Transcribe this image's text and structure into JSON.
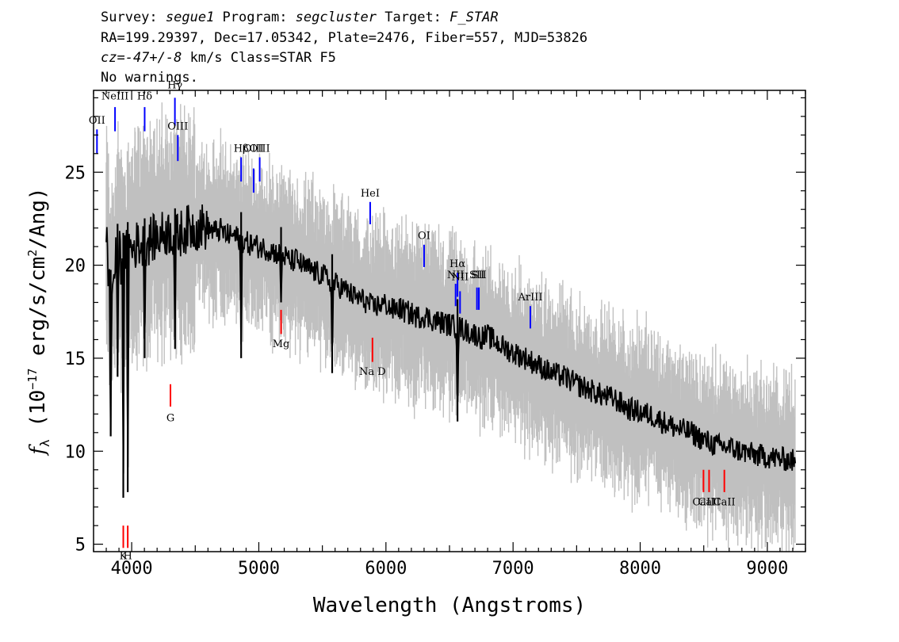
{
  "header": {
    "line1": {
      "survey_label": "Survey: ",
      "survey": "segue1",
      "program_label": " Program: ",
      "program": "segcluster",
      "target_label": " Target: ",
      "target": "F_STAR"
    },
    "line2": "RA=199.29397, Dec=17.05342, Plate=2476, Fiber=557, MJD=53826",
    "line3": {
      "cz": "cz=-47+/-8",
      "rest": " km/s Class=STAR F5"
    },
    "line4": "No warnings."
  },
  "chart_data": {
    "type": "line",
    "xlabel": "Wavelength (Angstroms)",
    "ylabel": "f_λ (10^-17 erg/s/cm^2/Ang)",
    "xlim": [
      3700,
      9300
    ],
    "ylim": [
      4.6,
      29.4
    ],
    "xticks": [
      4000,
      5000,
      6000,
      7000,
      8000,
      9000
    ],
    "yticks": [
      5,
      10,
      15,
      20,
      25
    ],
    "grid": false,
    "colors": {
      "flux": "#000000",
      "noise": "#c0c0c0",
      "emission": "#0000ff",
      "absorption": "#ff0000"
    },
    "series": [
      {
        "values_x": [
          3800,
          3830,
          3860,
          3880,
          3900,
          3920,
          3950,
          3980,
          4000,
          4050,
          4100,
          4150,
          4200,
          4250,
          4300,
          4350,
          4400,
          4450,
          4500,
          4550,
          4600,
          4650,
          4700,
          4750,
          4800,
          4850,
          4900,
          4950,
          5000,
          5050,
          5100,
          5150,
          5200,
          5250,
          5300,
          5350,
          5400,
          5450,
          5500,
          5550,
          5600,
          5650,
          5700,
          5750,
          5800,
          5850,
          5900,
          5950,
          6000,
          6050,
          6100,
          6150,
          6200,
          6250,
          6300,
          6350,
          6400,
          6450,
          6500,
          6550,
          6600,
          6650,
          6700,
          6750,
          6800,
          6900,
          7000,
          7100,
          7200,
          7300,
          7400,
          7500,
          7600,
          7700,
          7800,
          7900,
          8000,
          8100,
          8200,
          8300,
          8400,
          8500,
          8600,
          8700,
          8800,
          8900,
          9000,
          9100,
          9200,
          9220
        ],
        "values_y": [
          22.0,
          18.0,
          19.5,
          20.5,
          21.0,
          20.0,
          20.5,
          21.0,
          20.8,
          21.2,
          21.0,
          21.4,
          21.5,
          21.7,
          21.8,
          21.5,
          21.8,
          22.0,
          22.0,
          22.1,
          22.0,
          21.8,
          21.9,
          21.6,
          21.6,
          21.4,
          21.2,
          21.1,
          21.0,
          20.9,
          20.8,
          20.6,
          20.5,
          20.2,
          20.3,
          19.9,
          19.8,
          19.6,
          19.5,
          19.2,
          19.0,
          18.8,
          18.6,
          18.3,
          18.2,
          18.0,
          17.7,
          17.9,
          17.9,
          17.6,
          17.7,
          17.5,
          17.4,
          17.2,
          17.3,
          17.1,
          17.0,
          16.9,
          16.8,
          16.7,
          16.6,
          16.4,
          16.3,
          16.1,
          16.2,
          15.7,
          15.3,
          15.0,
          14.6,
          14.2,
          14.0,
          13.6,
          13.3,
          13.0,
          12.8,
          12.3,
          12.1,
          11.9,
          11.5,
          11.2,
          11.0,
          10.6,
          10.3,
          10.2,
          10.0,
          9.8,
          9.7,
          9.6,
          9.5,
          9.3
        ],
        "absorption_dips": [
          {
            "x": 3835,
            "y": 10.8
          },
          {
            "x": 3889,
            "y": 14.0
          },
          {
            "x": 3934,
            "y": 7.5
          },
          {
            "x": 3969,
            "y": 7.8
          },
          {
            "x": 4102,
            "y": 15.0
          },
          {
            "x": 4341,
            "y": 15.5
          },
          {
            "x": 4861,
            "y": 15.0
          },
          {
            "x": 5175,
            "y": 18.0
          },
          {
            "x": 5577,
            "y": 14.2
          },
          {
            "x": 6563,
            "y": 11.6
          }
        ]
      }
    ],
    "line_labels": [
      {
        "label": "OII",
        "x": 3727,
        "kind": "emission",
        "tick_top": 27.3,
        "tick_bottom": 26.0,
        "label_y": 27.6
      },
      {
        "label": "NeIII",
        "x": 3869,
        "kind": "emission",
        "tick_top": 28.5,
        "tick_bottom": 27.2,
        "label_y": 28.9
      },
      {
        "label": "Hδ",
        "x": 4102,
        "kind": "emission",
        "tick_top": 28.5,
        "tick_bottom": 27.2,
        "label_y": 28.9
      },
      {
        "label": "Hγ",
        "x": 4340,
        "kind": "emission",
        "tick_top": 29.0,
        "tick_bottom": 27.5,
        "label_y": 29.5
      },
      {
        "label": "OIII",
        "x": 4363,
        "kind": "emission",
        "tick_top": 27.0,
        "tick_bottom": 25.6,
        "label_y": 27.3
      },
      {
        "label": "Hβ",
        "x": 4861,
        "kind": "emission",
        "tick_top": 25.8,
        "tick_bottom": 24.5,
        "label_y": 26.1
      },
      {
        "label": "OIII",
        "x": 4959,
        "kind": "emission",
        "tick_top": 25.2,
        "tick_bottom": 23.9,
        "label_y": 26.1
      },
      {
        "label": "OIII",
        "x": 5007,
        "kind": "emission",
        "tick_top": 25.8,
        "tick_bottom": 24.5,
        "label_y": 26.1
      },
      {
        "label": "HeI",
        "x": 5876,
        "kind": "emission",
        "tick_top": 23.4,
        "tick_bottom": 22.2,
        "label_y": 23.7
      },
      {
        "label": "OI",
        "x": 6300,
        "kind": "emission",
        "tick_top": 21.1,
        "tick_bottom": 19.9,
        "label_y": 21.4
      },
      {
        "label": "NII",
        "x": 6548,
        "kind": "emission",
        "tick_top": 19.0,
        "tick_bottom": 17.8,
        "label_y": 19.3
      },
      {
        "label": "Hα",
        "x": 6563,
        "kind": "emission",
        "tick_top": 19.6,
        "tick_bottom": 18.3,
        "label_y": 19.9
      },
      {
        "label": "NII",
        "x": 6583,
        "kind": "emission",
        "tick_top": 18.6,
        "tick_bottom": 17.4,
        "label_y": 19.2
      },
      {
        "label": "SII",
        "x": 6716,
        "kind": "emission",
        "tick_top": 18.8,
        "tick_bottom": 17.6,
        "label_y": 19.3
      },
      {
        "label": "SII",
        "x": 6731,
        "kind": "emission",
        "tick_top": 18.8,
        "tick_bottom": 17.6,
        "label_y": 19.3
      },
      {
        "label": "ArIII",
        "x": 7136,
        "kind": "emission",
        "tick_top": 17.8,
        "tick_bottom": 16.6,
        "label_y": 18.1
      },
      {
        "label": "K",
        "x": 3934,
        "kind": "absorption",
        "tick_top": 6.0,
        "tick_bottom": 4.8,
        "label_y": 4.2
      },
      {
        "label": "H",
        "x": 3969,
        "kind": "absorption",
        "tick_top": 6.0,
        "tick_bottom": 4.8,
        "label_y": 4.2
      },
      {
        "label": "G",
        "x": 4305,
        "kind": "absorption",
        "tick_top": 13.6,
        "tick_bottom": 12.4,
        "label_y": 11.6
      },
      {
        "label": "Mg",
        "x": 5175,
        "kind": "absorption",
        "tick_top": 17.6,
        "tick_bottom": 16.3,
        "label_y": 15.6
      },
      {
        "label": "Na D",
        "x": 5894,
        "kind": "absorption",
        "tick_top": 16.1,
        "tick_bottom": 14.8,
        "label_y": 14.1
      },
      {
        "label": "CaII",
        "x": 8498,
        "kind": "absorption",
        "tick_top": 9.0,
        "tick_bottom": 7.8,
        "label_y": 7.1
      },
      {
        "label": "CaII",
        "x": 8542,
        "kind": "absorption",
        "tick_top": 9.0,
        "tick_bottom": 7.8,
        "label_y": 7.1
      },
      {
        "label": "CaII",
        "x": 8662,
        "kind": "absorption",
        "tick_top": 9.0,
        "tick_bottom": 7.8,
        "label_y": 7.1
      }
    ]
  }
}
